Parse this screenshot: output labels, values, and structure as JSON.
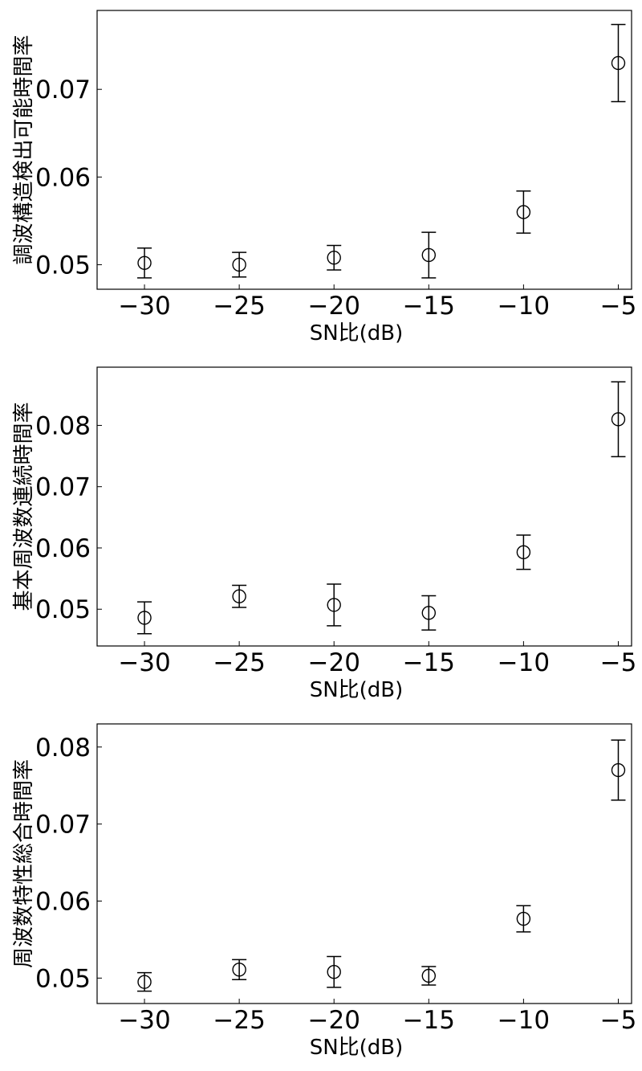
{
  "chart_data": [
    {
      "type": "scatter",
      "xlabel": "SN比(dB)",
      "ylabel": "調波構造検出可能時間率",
      "x": [
        -30,
        -25,
        -20,
        -15,
        -10,
        -5
      ],
      "y": [
        0.0502,
        0.05,
        0.0508,
        0.0511,
        0.056,
        0.073
      ],
      "error": [
        0.0017,
        0.0014,
        0.0014,
        0.0026,
        0.0024,
        0.0044
      ],
      "xticks": [
        "−30",
        "−25",
        "−20",
        "−15",
        "−10",
        "−5"
      ],
      "yticks": [
        "0.05",
        "0.06",
        "0.07"
      ],
      "ytick_values": [
        0.05,
        0.06,
        0.07
      ],
      "xlim": [
        -32.5,
        -4.3
      ],
      "ylim": [
        0.0472,
        0.079
      ],
      "grid": false,
      "marker": "open-circle"
    },
    {
      "type": "scatter",
      "xlabel": "SN比(dB)",
      "ylabel": "基本周波数連続時間率",
      "x": [
        -30,
        -25,
        -20,
        -15,
        -10,
        -5
      ],
      "y": [
        0.0486,
        0.0521,
        0.0507,
        0.0494,
        0.0593,
        0.081
      ],
      "error": [
        0.0026,
        0.0018,
        0.0034,
        0.0028,
        0.0028,
        0.0061
      ],
      "xticks": [
        "−30",
        "−25",
        "−20",
        "−15",
        "−10",
        "−5"
      ],
      "yticks": [
        "0.05",
        "0.06",
        "0.07",
        "0.08"
      ],
      "ytick_values": [
        0.05,
        0.06,
        0.07,
        0.08
      ],
      "xlim": [
        -32.5,
        -4.3
      ],
      "ylim": [
        0.044,
        0.0895
      ],
      "grid": false,
      "marker": "open-circle"
    },
    {
      "type": "scatter",
      "xlabel": "SN比(dB)",
      "ylabel": "周波数特性総合時間率",
      "x": [
        -30,
        -25,
        -20,
        -15,
        -10,
        -5
      ],
      "y": [
        0.0495,
        0.0511,
        0.0508,
        0.0503,
        0.0577,
        0.077
      ],
      "error": [
        0.0012,
        0.0013,
        0.002,
        0.0012,
        0.0017,
        0.0039
      ],
      "xticks": [
        "−30",
        "−25",
        "−20",
        "−15",
        "−10",
        "−5"
      ],
      "yticks": [
        "0.05",
        "0.06",
        "0.07",
        "0.08"
      ],
      "ytick_values": [
        0.05,
        0.06,
        0.07,
        0.08
      ],
      "xlim": [
        -32.5,
        -4.3
      ],
      "ylim": [
        0.0467,
        0.083
      ],
      "grid": false,
      "marker": "open-circle"
    }
  ]
}
